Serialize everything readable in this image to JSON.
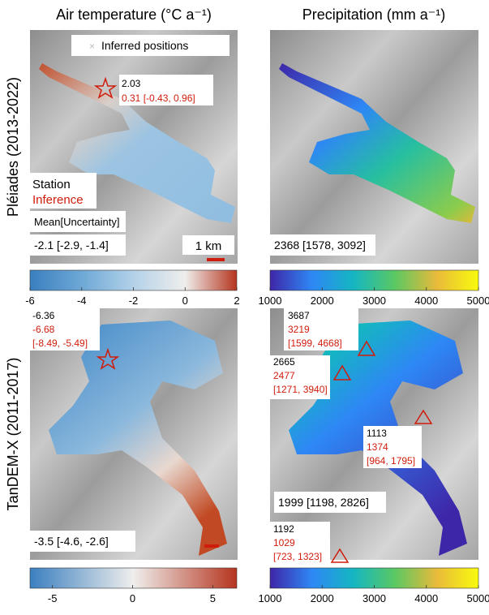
{
  "columns": [
    "Air temperature (°C a⁻¹)",
    "Precipitation (mm a⁻¹)"
  ],
  "rows": [
    "Pléiades (2013-2022)",
    "TanDEM-X (2011-2017)"
  ],
  "panels": [
    {
      "legend": "Inferred positions",
      "station": "2.03",
      "inference": "0.31 [-0.43, 0.96]",
      "key_station": "Station",
      "key_inference": "Inference",
      "key_mean": "Mean[Uncertainty]",
      "mean": "-2.1 [-2.9, -1.4]",
      "scale": "1 km"
    },
    {
      "mean": "2368 [1578, 3092]"
    },
    {
      "station": "-6.36",
      "inference": "-6.68",
      "uncertainty": "[-8.49, -5.49]",
      "mean": "-3.5 [-4.6, -2.6]"
    },
    {
      "sites": [
        {
          "station": "3687",
          "inference": "3219",
          "uncertainty": "[1599, 4668]"
        },
        {
          "station": "2665",
          "inference": "2477",
          "uncertainty": "[1271, 3940]"
        },
        {
          "station": "1113",
          "inference": "1374",
          "uncertainty": "[964, 1795]"
        },
        {
          "station": "1192",
          "inference": "1029",
          "uncertainty": "[723, 1323]"
        }
      ],
      "mean": "1999 [1198, 2826]"
    }
  ],
  "colorbars": [
    {
      "lim": [
        -6,
        2
      ],
      "ticks": [
        -6,
        -4,
        -2,
        0,
        2
      ],
      "colors": [
        "#3a7fc0",
        "#6ea8d6",
        "#b3d1e8",
        "#efeeec",
        "#b5341e"
      ]
    },
    {
      "lim": [
        1000,
        5000
      ],
      "ticks": [
        1000,
        2000,
        3000,
        4000,
        5000
      ],
      "colors": [
        "#3e26a8",
        "#2e87f5",
        "#15b6c2",
        "#5bc862",
        "#e9ba3a",
        "#f9fb0e"
      ]
    },
    {
      "lim": [
        -6.4,
        6.5
      ],
      "ticks": [
        -5,
        0,
        5
      ],
      "colors": [
        "#3a7fc0",
        "#efeeec",
        "#b5341e"
      ]
    },
    {
      "lim": [
        1000,
        5000
      ],
      "ticks": [
        1000,
        2000,
        3000,
        4000,
        5000
      ],
      "colors": [
        "#3e26a8",
        "#2e87f5",
        "#15b6c2",
        "#5bc862",
        "#e9ba3a",
        "#f9fb0e"
      ]
    }
  ]
}
